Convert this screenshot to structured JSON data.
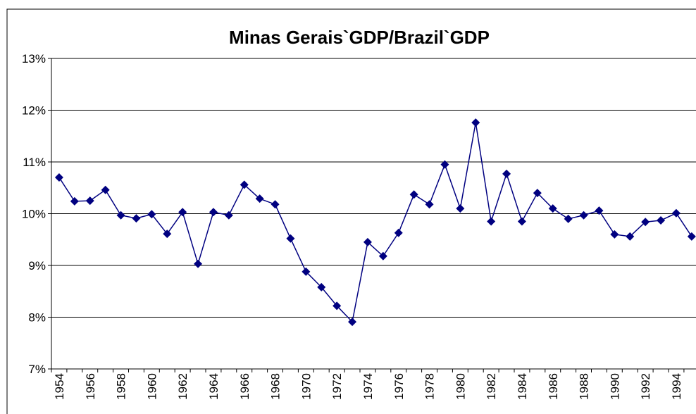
{
  "chart_data": {
    "type": "line",
    "title": "Minas Gerais`GDP/Brazil`GDP",
    "categories": [
      "1954",
      null,
      "1956",
      null,
      "1958",
      null,
      "1960",
      null,
      "1962",
      null,
      "1964",
      null,
      "1966",
      null,
      "1968",
      null,
      "1970",
      null,
      "1972",
      null,
      "1974",
      null,
      "1976",
      null,
      "1978",
      null,
      "1980",
      null,
      "1982",
      null,
      "1984",
      null,
      "1986",
      null,
      "1988",
      null,
      "1990",
      null,
      "1992",
      null,
      "1994",
      null
    ],
    "series": [
      {
        "color": "#000080",
        "values": [
          10.7,
          10.24,
          10.25,
          10.46,
          9.97,
          9.91,
          9.99,
          9.61,
          10.03,
          9.03,
          10.03,
          9.97,
          10.56,
          10.29,
          10.18,
          9.52,
          8.88,
          8.58,
          8.22,
          7.91,
          9.45,
          9.18,
          9.63,
          10.37,
          10.18,
          10.95,
          10.1,
          11.76,
          9.85,
          10.77,
          9.85,
          10.4,
          10.1,
          9.9,
          9.97,
          10.06,
          9.6,
          9.56,
          9.84,
          9.87,
          10.01,
          9.56
        ]
      }
    ],
    "ylim": [
      7,
      13
    ],
    "yticks": [
      {
        "value": 7,
        "label": "7%"
      },
      {
        "value": 8,
        "label": "8%"
      },
      {
        "value": 9,
        "label": "9%"
      },
      {
        "value": 10,
        "label": "10%"
      },
      {
        "value": 11,
        "label": "11%"
      },
      {
        "value": 12,
        "label": "12%"
      },
      {
        "value": 13,
        "label": "13%"
      }
    ],
    "grid": true
  }
}
